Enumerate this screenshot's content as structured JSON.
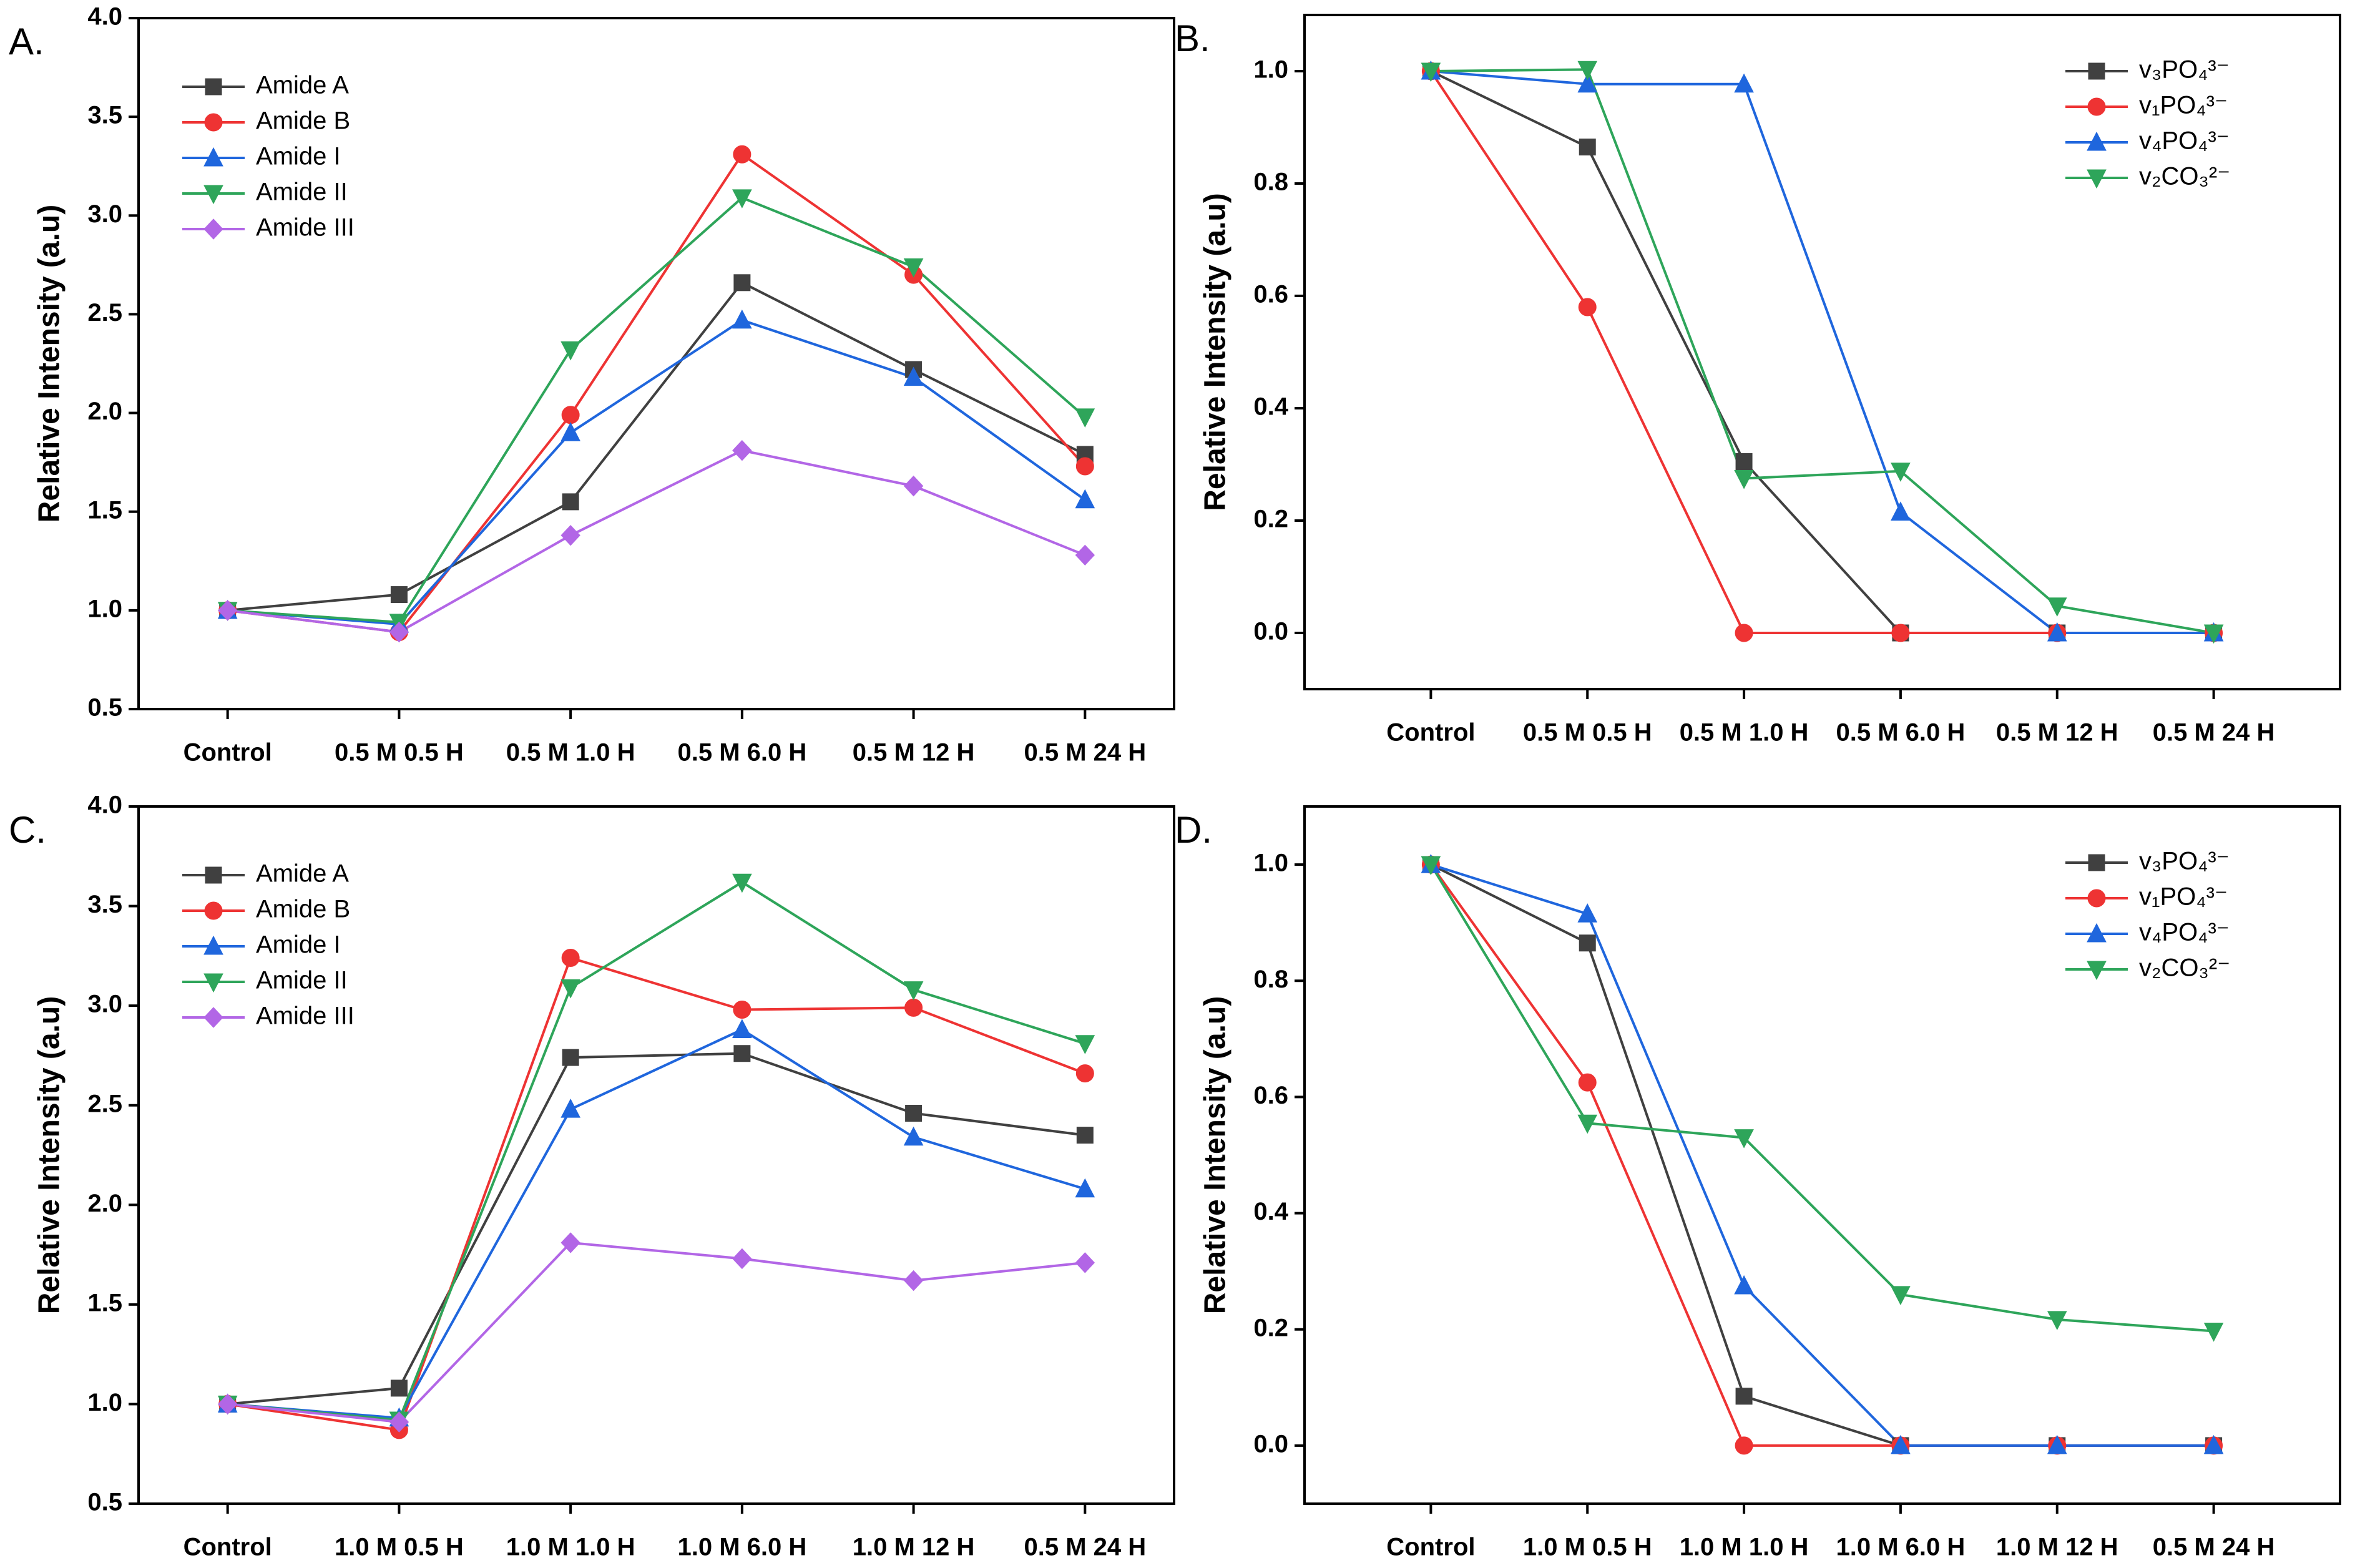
{
  "chart_data": [
    {
      "type": "line",
      "panel_label": "A.",
      "y_label": "Relative Intensity (a.u)",
      "legend_position": "upper left",
      "categories": [
        "Control",
        "0.5 M 0.5 H",
        "0.5 M 1.0 H",
        "0.5 M 6.0 H",
        "0.5 M 12 H",
        "0.5 M 24 H"
      ],
      "ylim": [
        0.5,
        4.0
      ],
      "yticks": [
        0.5,
        {
          "value": 1,
          "label": "1.0"
        },
        1.5,
        {
          "value": 2,
          "label": "2.0"
        },
        2.5,
        {
          "value": 3,
          "label": "3.0"
        },
        3.5,
        {
          "value": 4,
          "label": "4.0"
        }
      ],
      "series": [
        {
          "name": "Amide A",
          "color": "#404040",
          "marker": "square",
          "values": [
            1.0,
            1.08,
            1.55,
            2.66,
            2.22,
            1.79
          ]
        },
        {
          "name": "Amide B",
          "color": "#ee3333",
          "marker": "circle",
          "values": [
            1.0,
            0.89,
            1.99,
            3.31,
            2.7,
            1.73
          ]
        },
        {
          "name": "Amide I",
          "color": "#1f66dd",
          "marker": "triangle-up",
          "values": [
            1.0,
            0.93,
            1.9,
            2.47,
            2.18,
            1.56
          ]
        },
        {
          "name": "Amide II",
          "color": "#2ea55a",
          "marker": "triangle-down",
          "values": [
            1.0,
            0.94,
            2.32,
            3.09,
            2.74,
            1.98
          ]
        },
        {
          "name": "Amide III",
          "color": "#b266e6",
          "marker": "diamond",
          "values": [
            1.0,
            0.89,
            1.38,
            1.81,
            1.63,
            1.28
          ]
        }
      ]
    },
    {
      "type": "line",
      "panel_label": "B.",
      "y_label": "Relative Intensity (a.u)",
      "legend_position": "upper right",
      "categories": [
        "Control",
        "0.5 M 0.5 H",
        "0.5 M 1.0 H",
        "0.5 M 6.0 H",
        "0.5 M 12 H",
        "0.5 M 24 H"
      ],
      "ylim": [
        -0.1,
        1.1
      ],
      "yticks": [
        {
          "value": 0,
          "label": "0.0"
        },
        0.2,
        0.4,
        0.6,
        0.8,
        {
          "value": 1,
          "label": "1.0"
        }
      ],
      "series": [
        {
          "name": "v₃PO₄³⁻",
          "color": "#404040",
          "marker": "square",
          "values": [
            1.0,
            0.865,
            0.305,
            0,
            0,
            0
          ]
        },
        {
          "name": "v₁PO₄³⁻",
          "color": "#ee3333",
          "marker": "circle",
          "values": [
            1.0,
            0.58,
            0,
            0,
            0,
            0
          ]
        },
        {
          "name": "v₄PO₄³⁻",
          "color": "#1f66dd",
          "marker": "triangle-up",
          "values": [
            1.0,
            0.977,
            0.977,
            0.215,
            0,
            0
          ]
        },
        {
          "name": "v₂CO₃²⁻",
          "color": "#2ea55a",
          "marker": "triangle-down",
          "values": [
            1.0,
            1.003,
            0.275,
            0.288,
            0.048,
            0
          ]
        }
      ]
    },
    {
      "type": "line",
      "panel_label": "C.",
      "y_label": "Relative Intensity (a.u)",
      "legend_position": "upper left",
      "categories": [
        "Control",
        "1.0 M 0.5 H",
        "1.0 M 1.0 H",
        "1.0 M 6.0 H",
        "1.0 M 12 H",
        "0.5 M 24 H"
      ],
      "ylim": [
        0.5,
        4.0
      ],
      "yticks": [
        0.5,
        {
          "value": 1,
          "label": "1.0"
        },
        1.5,
        {
          "value": 2,
          "label": "2.0"
        },
        2.5,
        {
          "value": 3,
          "label": "3.0"
        },
        3.5,
        {
          "value": 4,
          "label": "4.0"
        }
      ],
      "series": [
        {
          "name": "Amide A",
          "color": "#404040",
          "marker": "square",
          "values": [
            1.0,
            1.08,
            2.74,
            2.76,
            2.46,
            2.35
          ]
        },
        {
          "name": "Amide B",
          "color": "#ee3333",
          "marker": "circle",
          "values": [
            1.0,
            0.87,
            3.24,
            2.98,
            2.99,
            2.66
          ]
        },
        {
          "name": "Amide I",
          "color": "#1f66dd",
          "marker": "triangle-up",
          "values": [
            1.0,
            0.93,
            2.48,
            2.88,
            2.34,
            2.08
          ]
        },
        {
          "name": "Amide II",
          "color": "#2ea55a",
          "marker": "triangle-down",
          "values": [
            1.0,
            0.92,
            3.09,
            3.62,
            3.08,
            2.81
          ]
        },
        {
          "name": "Amide III",
          "color": "#b266e6",
          "marker": "diamond",
          "values": [
            1.0,
            0.91,
            1.81,
            1.73,
            1.62,
            1.71
          ]
        }
      ]
    },
    {
      "type": "line",
      "panel_label": "D.",
      "y_label": "Relative Intensity (a.u)",
      "legend_position": "upper right",
      "categories": [
        "Control",
        "1.0 M 0.5 H",
        "1.0 M 1.0 H",
        "1.0 M 6.0 H",
        "1.0 M 12 H",
        "0.5 M 24 H"
      ],
      "ylim": [
        -0.1,
        1.1
      ],
      "yticks": [
        {
          "value": 0,
          "label": "0.0"
        },
        0.2,
        0.4,
        0.6,
        0.8,
        {
          "value": 1,
          "label": "1.0"
        }
      ],
      "series": [
        {
          "name": "v₃PO₄³⁻",
          "color": "#404040",
          "marker": "square",
          "values": [
            1.0,
            0.865,
            0.085,
            0,
            0,
            0
          ]
        },
        {
          "name": "v₁PO₄³⁻",
          "color": "#ee3333",
          "marker": "circle",
          "values": [
            1.0,
            0.625,
            0,
            0,
            0,
            0
          ]
        },
        {
          "name": "v₄PO₄³⁻",
          "color": "#1f66dd",
          "marker": "triangle-up",
          "values": [
            1.0,
            0.915,
            0.275,
            0,
            0,
            0
          ]
        },
        {
          "name": "v₂CO₃²⁻",
          "color": "#2ea55a",
          "marker": "triangle-down",
          "values": [
            1.0,
            0.555,
            0.53,
            0.26,
            0.217,
            0.197
          ]
        }
      ]
    }
  ]
}
